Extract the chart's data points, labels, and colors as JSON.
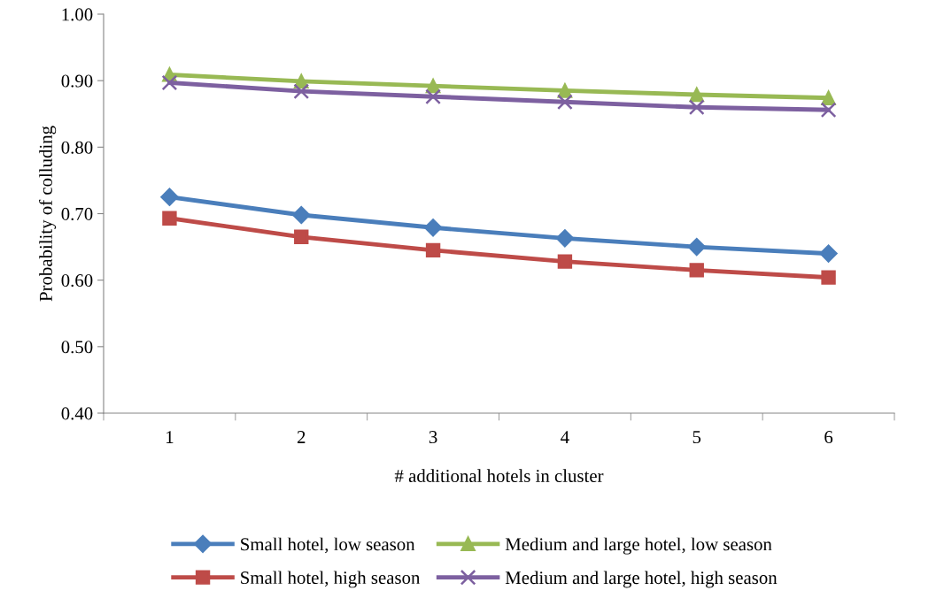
{
  "chart_data": {
    "type": "line",
    "xlabel": "# additional hotels in cluster",
    "ylabel": "Probability of colluding",
    "categories": [
      "1",
      "2",
      "3",
      "4",
      "5",
      "6"
    ],
    "ylim": [
      0.4,
      1.0
    ],
    "yticks": [
      {
        "value": 0.4,
        "label": "0.40"
      },
      {
        "value": 0.5,
        "label": "0.50"
      },
      {
        "value": 0.6,
        "label": "0.60"
      },
      {
        "value": 0.7,
        "label": "0.70"
      },
      {
        "value": 0.8,
        "label": "0.80"
      },
      {
        "value": 0.9,
        "label": "0.90"
      },
      {
        "value": 1.0,
        "label": "1.00"
      }
    ],
    "grid": false,
    "legend": "bottom",
    "series": [
      {
        "name": "Small hotel, low season",
        "color": "#4a7ebb",
        "marker": "diamond",
        "values": [
          0.725,
          0.698,
          0.679,
          0.663,
          0.65,
          0.64
        ]
      },
      {
        "name": "Small hotel, high season",
        "color": "#be4b48",
        "marker": "square",
        "values": [
          0.693,
          0.665,
          0.645,
          0.628,
          0.615,
          0.604
        ]
      },
      {
        "name": "Medium and large hotel, low season",
        "color": "#98b954",
        "marker": "triangle",
        "values": [
          0.909,
          0.899,
          0.892,
          0.885,
          0.879,
          0.874
        ]
      },
      {
        "name": "Medium and large hotel, high season",
        "color": "#7d60a0",
        "marker": "cross",
        "values": [
          0.897,
          0.884,
          0.876,
          0.868,
          0.86,
          0.856
        ]
      }
    ]
  }
}
